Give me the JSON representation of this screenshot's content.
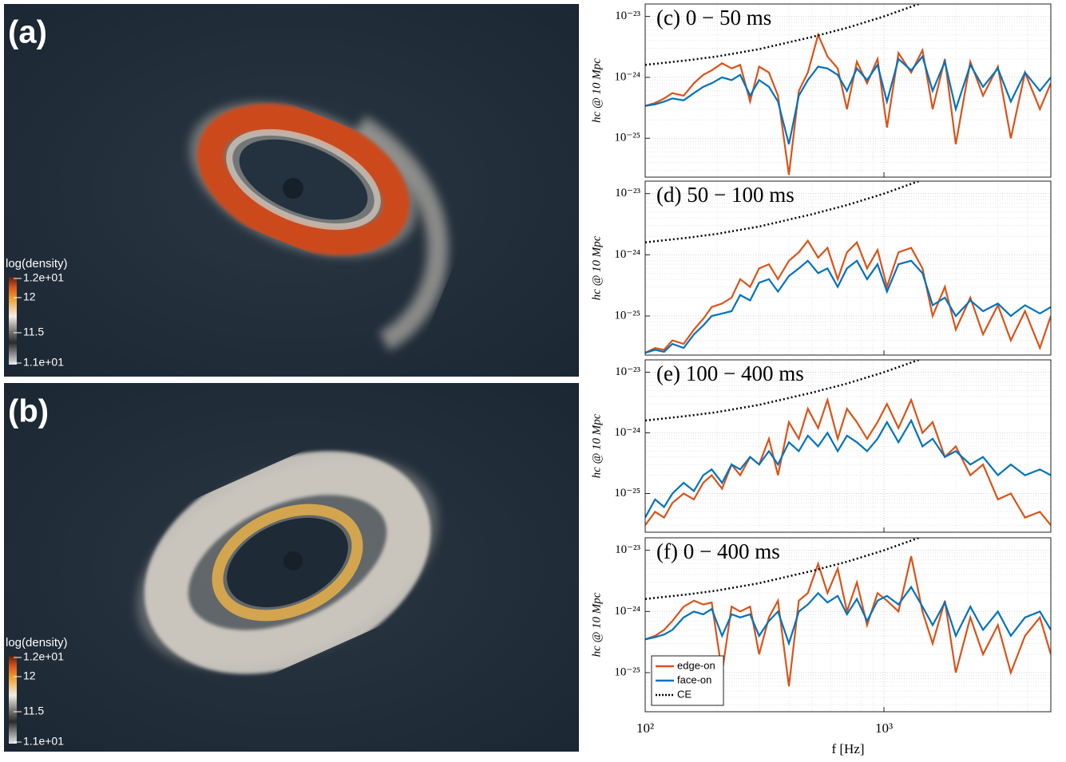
{
  "panels": [
    {
      "label": "(a)",
      "colorbar": {
        "title": "log(density)",
        "ticks": [
          "1.2e+01",
          "12",
          "11.5",
          "1.1e+01"
        ]
      }
    },
    {
      "label": "(b)",
      "colorbar": {
        "title": "log(density)",
        "ticks": [
          "1.2e+01",
          "12",
          "11.5",
          "1.1e+01"
        ]
      }
    }
  ],
  "chart_data": [
    {
      "type": "line",
      "title": "(c) 0 − 50 ms",
      "ylabel": "hc @ 10 Mpc",
      "log_x": true,
      "log_y": true,
      "grid": true,
      "xlim": [
        100,
        5000
      ],
      "ylim": [
        2.3e-26,
        1.6e-23
      ],
      "xticks": [
        100,
        1000
      ],
      "yticks": [
        {
          "value": 1e-25,
          "label": "10⁻²⁵"
        },
        {
          "value": 1e-24,
          "label": "10⁻²⁴"
        },
        {
          "value": 1e-23,
          "label": "10⁻²³"
        }
      ],
      "x": [
        100,
        110,
        120,
        130,
        145,
        160,
        175,
        190,
        210,
        230,
        250,
        275,
        300,
        330,
        360,
        400,
        440,
        480,
        530,
        580,
        640,
        700,
        770,
        850,
        940,
        1030,
        1150,
        1300,
        1450,
        1600,
        1800,
        2000,
        2300,
        2600,
        3000,
        3400,
        3900,
        4500,
        5000
      ],
      "series": [
        {
          "color": "#d95319",
          "values": [
            3.4e-25,
            3.8e-25,
            4.5e-25,
            5.5e-25,
            5e-25,
            8e-25,
            1.1e-24,
            1.3e-24,
            1.7e-24,
            1.4e-24,
            1.6e-24,
            4e-25,
            1.5e-24,
            1.2e-24,
            5e-25,
            2.5e-26,
            6e-25,
            1.2e-24,
            5e-24,
            2.2e-24,
            1.4e-24,
            3e-25,
            1.8e-24,
            8e-25,
            2e-24,
            1.5e-25,
            2.5e-24,
            1.2e-24,
            2.8e-24,
            3e-25,
            2e-24,
            8e-26,
            1.8e-24,
            5e-25,
            1.5e-24,
            1e-25,
            1.2e-24,
            3e-25,
            8e-25
          ]
        },
        {
          "color": "#0072bd",
          "values": [
            3.4e-25,
            3.6e-25,
            4e-25,
            4.5e-25,
            4.2e-25,
            5.5e-25,
            7e-25,
            8e-25,
            1e-24,
            9e-25,
            1.1e-24,
            5e-25,
            9e-25,
            7e-25,
            4e-25,
            8e-26,
            5e-25,
            9e-25,
            1.5e-24,
            1.4e-24,
            1.1e-24,
            6e-25,
            1.4e-24,
            9e-25,
            1.6e-24,
            4e-25,
            2e-24,
            1.3e-24,
            2.2e-24,
            6e-25,
            1.8e-24,
            3e-25,
            1.6e-24,
            7e-25,
            1.4e-24,
            4e-25,
            1.2e-24,
            6e-25,
            1e-24
          ]
        },
        {
          "color": "#000000",
          "dotted": true,
          "x": [
            100,
            150,
            200,
            300,
            500,
            700,
            1000,
            1400
          ],
          "values": [
            1.6e-24,
            1.9e-24,
            2.2e-24,
            2.9e-24,
            4.6e-24,
            6.5e-24,
            1e-23,
            1.6e-23
          ]
        }
      ]
    },
    {
      "type": "line",
      "title": "(d) 50 − 100 ms",
      "ylabel": "hc @ 10 Mpc",
      "log_x": true,
      "log_y": true,
      "grid": true,
      "xlim": [
        100,
        5000
      ],
      "ylim": [
        2.3e-26,
        1.6e-23
      ],
      "xticks": [
        100,
        1000
      ],
      "yticks": [
        {
          "value": 1e-25,
          "label": "10⁻²⁵"
        },
        {
          "value": 1e-24,
          "label": "10⁻²⁴"
        },
        {
          "value": 1e-23,
          "label": "10⁻²³"
        }
      ],
      "x": [
        100,
        110,
        120,
        130,
        145,
        160,
        175,
        190,
        210,
        230,
        250,
        275,
        300,
        330,
        360,
        400,
        440,
        480,
        530,
        580,
        640,
        700,
        770,
        850,
        940,
        1030,
        1150,
        1300,
        1450,
        1600,
        1800,
        2000,
        2300,
        2600,
        3000,
        3400,
        3900,
        4500,
        5000
      ],
      "series": [
        {
          "color": "#d95319",
          "values": [
            2.5e-26,
            3e-26,
            2.8e-26,
            4e-26,
            3.5e-26,
            6e-26,
            9e-26,
            1.4e-25,
            1.6e-25,
            2e-25,
            4e-25,
            3e-25,
            6e-25,
            7e-25,
            4e-25,
            8e-25,
            1.1e-24,
            1.7e-24,
            9e-25,
            1.3e-24,
            4e-25,
            1.1e-24,
            1.6e-24,
            6e-25,
            1.2e-24,
            3e-25,
            1.1e-24,
            1.3e-24,
            6e-25,
            1e-25,
            3e-25,
            6e-26,
            2e-25,
            5e-26,
            1.5e-25,
            4e-26,
            1.2e-25,
            3e-26,
            1e-25
          ]
        },
        {
          "color": "#0072bd",
          "values": [
            2.5e-26,
            2.8e-26,
            2.6e-26,
            3.5e-26,
            3e-26,
            5e-26,
            7e-26,
            1e-25,
            1.1e-25,
            1.2e-25,
            2.2e-25,
            1.8e-25,
            3.5e-25,
            4e-25,
            2.5e-25,
            4.5e-25,
            6e-25,
            8e-25,
            5e-25,
            6e-25,
            3e-25,
            6e-25,
            8e-25,
            4e-25,
            7e-25,
            2.5e-25,
            7e-25,
            8e-25,
            5e-25,
            1.5e-25,
            2e-25,
            1e-25,
            1.8e-25,
            1.2e-25,
            1.6e-25,
            1e-25,
            1.5e-25,
            1.1e-25,
            1.4e-25
          ]
        },
        {
          "color": "#000000",
          "dotted": true,
          "x": [
            100,
            150,
            200,
            300,
            500,
            700,
            1000,
            1400
          ],
          "values": [
            1.6e-24,
            1.9e-24,
            2.2e-24,
            2.9e-24,
            4.6e-24,
            6.5e-24,
            1e-23,
            1.6e-23
          ]
        }
      ]
    },
    {
      "type": "line",
      "title": "(e) 100 − 400 ms",
      "ylabel": "hc @ 10 Mpc",
      "log_x": true,
      "log_y": true,
      "grid": true,
      "xlim": [
        100,
        5000
      ],
      "ylim": [
        2.3e-26,
        1.6e-23
      ],
      "xticks": [
        100,
        1000
      ],
      "yticks": [
        {
          "value": 1e-25,
          "label": "10⁻²⁵"
        },
        {
          "value": 1e-24,
          "label": "10⁻²⁴"
        },
        {
          "value": 1e-23,
          "label": "10⁻²³"
        }
      ],
      "x": [
        100,
        110,
        120,
        130,
        145,
        160,
        175,
        190,
        210,
        230,
        250,
        275,
        300,
        330,
        360,
        400,
        440,
        480,
        530,
        580,
        640,
        700,
        770,
        850,
        940,
        1030,
        1150,
        1300,
        1450,
        1600,
        1800,
        2000,
        2300,
        2600,
        3000,
        3400,
        3900,
        4500,
        5000
      ],
      "series": [
        {
          "color": "#d95319",
          "values": [
            3e-26,
            5e-26,
            4e-26,
            7e-26,
            1e-25,
            8e-26,
            1.5e-25,
            2e-25,
            1.2e-25,
            3e-25,
            2e-25,
            4e-25,
            3e-25,
            8e-25,
            2e-25,
            1.5e-24,
            8e-25,
            2.5e-24,
            1.2e-24,
            3.5e-24,
            8e-25,
            2.5e-24,
            1.5e-24,
            8e-25,
            1.5e-24,
            3e-24,
            1.2e-24,
            3.5e-24,
            1e-24,
            1.5e-24,
            4e-25,
            6e-25,
            2e-25,
            3e-25,
            8e-26,
            1e-25,
            4e-26,
            5e-26,
            3e-26
          ]
        },
        {
          "color": "#0072bd",
          "values": [
            4e-26,
            8e-26,
            6e-26,
            1e-25,
            1.5e-25,
            1.1e-25,
            2e-25,
            2.5e-25,
            1.5e-25,
            3e-25,
            2.5e-25,
            4e-25,
            3e-25,
            5e-25,
            3e-25,
            7e-25,
            5e-25,
            9e-25,
            6e-25,
            1e-24,
            5e-25,
            9e-25,
            7e-25,
            5e-25,
            8e-25,
            1.5e-24,
            7e-25,
            1.6e-24,
            6e-25,
            8e-25,
            4e-25,
            5e-25,
            3e-25,
            4e-25,
            2e-25,
            3e-25,
            2e-25,
            2.5e-25,
            2e-25
          ]
        },
        {
          "color": "#000000",
          "dotted": true,
          "x": [
            100,
            150,
            200,
            300,
            500,
            700,
            1000,
            1400
          ],
          "values": [
            1.6e-24,
            1.9e-24,
            2.2e-24,
            2.9e-24,
            4.6e-24,
            6.5e-24,
            1e-23,
            1.6e-23
          ]
        }
      ]
    },
    {
      "type": "line",
      "title": "(f) 0 − 400 ms",
      "ylabel": "hc @ 10 Mpc",
      "xlabel": "f [Hz]",
      "log_x": true,
      "log_y": true,
      "grid": true,
      "legend": "lower left",
      "xlim": [
        100,
        5000
      ],
      "ylim": [
        2.3e-26,
        1.6e-23
      ],
      "xticks": [
        {
          "value": 100,
          "label": "10²"
        },
        {
          "value": 1000,
          "label": "10³"
        }
      ],
      "yticks": [
        {
          "value": 1e-25,
          "label": "10⁻²⁵"
        },
        {
          "value": 1e-24,
          "label": "10⁻²⁴"
        },
        {
          "value": 1e-23,
          "label": "10⁻²³"
        }
      ],
      "x": [
        100,
        110,
        120,
        130,
        145,
        160,
        175,
        190,
        210,
        230,
        250,
        275,
        300,
        330,
        360,
        400,
        440,
        480,
        530,
        580,
        640,
        700,
        770,
        850,
        940,
        1030,
        1150,
        1300,
        1450,
        1600,
        1800,
        2000,
        2300,
        2600,
        3000,
        3400,
        3900,
        4500,
        5000
      ],
      "series": [
        {
          "name": "edge-on",
          "color": "#d95319",
          "values": [
            3.5e-25,
            4e-25,
            5e-25,
            7e-25,
            1.2e-24,
            1.5e-24,
            1.3e-24,
            1.4e-24,
            1e-25,
            1.2e-24,
            1e-24,
            1.2e-24,
            2e-25,
            8e-25,
            1.5e-24,
            6e-26,
            1.5e-24,
            2e-24,
            6e-24,
            2e-24,
            5e-24,
            1e-24,
            3e-24,
            6e-25,
            2e-24,
            1.5e-24,
            1e-24,
            8e-24,
            1e-24,
            3e-25,
            1.5e-24,
            1e-25,
            8e-25,
            2e-25,
            6e-25,
            1e-25,
            4e-25,
            8e-25,
            2e-25
          ]
        },
        {
          "name": "face-on",
          "color": "#0072bd",
          "values": [
            3.5e-25,
            3.8e-25,
            4.2e-25,
            5e-25,
            8e-25,
            1e-24,
            9e-25,
            1.1e-24,
            4e-25,
            9e-25,
            8e-25,
            9e-25,
            4e-25,
            7e-25,
            1e-24,
            3e-25,
            1e-24,
            1.3e-24,
            2e-24,
            1.4e-24,
            1.8e-24,
            9e-25,
            1.6e-24,
            7e-25,
            1.5e-24,
            1.8e-24,
            1.3e-24,
            2.5e-24,
            1.2e-24,
            6e-25,
            1.4e-24,
            4e-25,
            1.2e-24,
            5e-25,
            1e-24,
            4e-25,
            8e-25,
            1e-24,
            5e-25
          ]
        },
        {
          "name": "CE",
          "color": "#000000",
          "dotted": true,
          "x": [
            100,
            150,
            200,
            300,
            500,
            700,
            1000,
            1400
          ],
          "values": [
            1.6e-24,
            1.9e-24,
            2.2e-24,
            2.9e-24,
            4.6e-24,
            6.5e-24,
            1e-23,
            1.6e-23
          ]
        }
      ]
    }
  ]
}
